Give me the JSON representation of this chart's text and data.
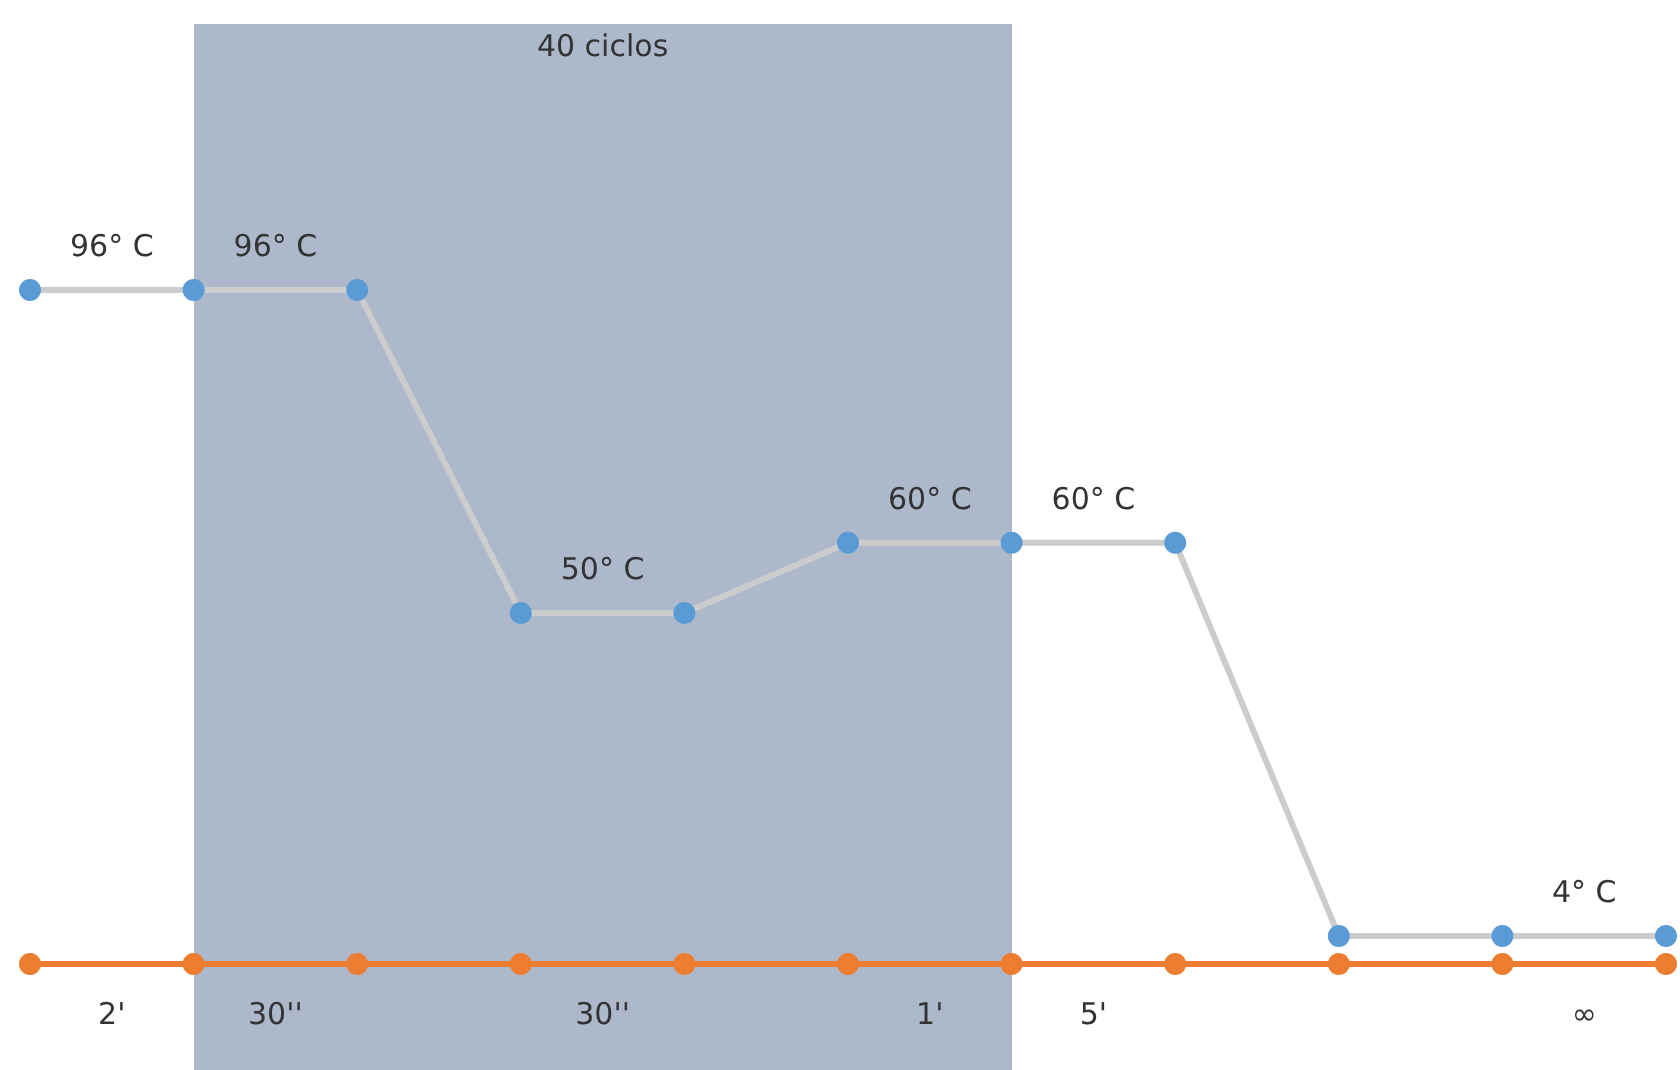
{
  "chart_data": {
    "type": "line",
    "categories": [
      null,
      null,
      null,
      null,
      null,
      null,
      null,
      null,
      null,
      null,
      null
    ],
    "tick_labels": false,
    "legend": false,
    "marker": "circle",
    "series": [
      {
        "color": "#5b9bd5",
        "values": [
          96,
          96,
          96,
          50,
          50,
          60,
          60,
          60,
          4,
          4,
          4
        ],
        "value_labels": [
          null,
          "96° C",
          "96° C",
          null,
          "50° C",
          null,
          "60° C",
          "60° C",
          null,
          null,
          "4° C"
        ]
      },
      {
        "color": "#ed7d31",
        "values": [
          0,
          0,
          0,
          0,
          0,
          0,
          0,
          0,
          0,
          0,
          0
        ]
      }
    ],
    "annotations": [
      "40 ciclos",
      "2'",
      "30''",
      "30''",
      "1'",
      "5'",
      "∞"
    ]
  }
}
